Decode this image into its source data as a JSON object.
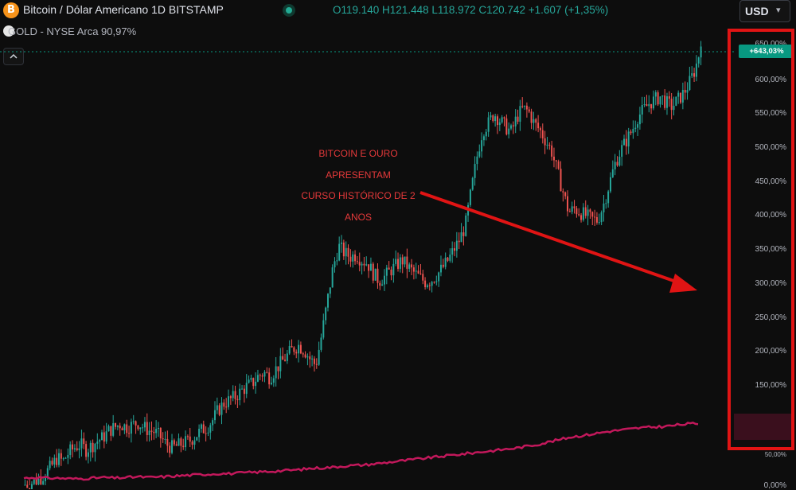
{
  "header": {
    "symbol_icon": "B",
    "symbol_title": "Bitcoin / Dólar Americano 1D BITSTAMP",
    "ohlc": "O119.140 H121.448 L118.972 C120.742 +1.607 (+1,35%)",
    "currency": "USD",
    "compare_label": "GOLD - NYSE Arca 90,97%"
  },
  "icons": {
    "symbol": "bitcoin-icon",
    "live": "live-status-icon",
    "currency_caret": "chevron-down-icon",
    "collapse": "chevron-up-icon",
    "compare": "gold-icon"
  },
  "annotation": {
    "lines": [
      "BITCOIN E OURO",
      "APRESENTAM",
      "CURSO HISTÓRICO DE 2",
      "ANOS"
    ]
  },
  "price_scale": {
    "last_value_label": "+643,03%",
    "ticks": [
      "650,00%",
      "600,00%",
      "550,00%",
      "500,00%",
      "450,00%",
      "400,00%",
      "350,00%",
      "300,00%",
      "250,00%",
      "200,00%",
      "150,00%",
      "50,00%",
      "0,00%"
    ]
  },
  "colors": {
    "up": "#26a69a",
    "down": "#ef5350",
    "gold_line": "#c2185b",
    "annotation": "#e5393a",
    "highlight": "#e01414"
  },
  "chart_data": {
    "type": "line",
    "y_unit": "%",
    "ylim": [
      0,
      650
    ],
    "series": [
      {
        "name": "Bitcoin / Dólar Americano",
        "values": [
          0,
          2,
          5,
          10,
          18,
          28,
          40,
          35,
          48,
          55,
          60,
          52,
          58,
          65,
          70,
          80,
          85,
          90,
          85,
          88,
          92,
          85,
          80,
          78,
          70,
          60,
          55,
          58,
          62,
          65,
          72,
          80,
          85,
          95,
          110,
          120,
          125,
          130,
          138,
          145,
          150,
          160,
          165,
          158,
          170,
          180,
          190,
          200,
          205,
          198,
          185,
          176,
          220,
          270,
          320,
          350,
          340,
          335,
          338,
          330,
          325,
          310,
          300,
          306,
          315,
          322,
          330,
          320,
          312,
          305,
          298,
          300,
          308,
          318,
          330,
          345,
          360,
          380,
          430,
          480,
          520,
          530,
          545,
          535,
          525,
          518,
          540,
          552,
          548,
          530,
          520,
          505,
          490,
          460,
          430,
          400,
          405,
          400,
          395,
          390,
          388,
          410,
          440,
          470,
          490,
          505,
          520,
          540,
          550,
          560,
          565,
          570,
          560,
          555,
          565,
          575,
          590,
          610,
          643
        ],
        "last_value": 643.03
      },
      {
        "name": "GOLD - NYSE Arca",
        "values": [
          5,
          6,
          5,
          5,
          4,
          4,
          5,
          6,
          5,
          6,
          7,
          6,
          7,
          8,
          9,
          10,
          11,
          12,
          12,
          13,
          14,
          15,
          16,
          17,
          18,
          20,
          21,
          22,
          24,
          25,
          26,
          28,
          30,
          32,
          34,
          36,
          38,
          40,
          42,
          44,
          46,
          48,
          50,
          52,
          55,
          58,
          62,
          66,
          70,
          72,
          75,
          78,
          80,
          82,
          84,
          85,
          86,
          88,
          90,
          91
        ],
        "last_value": 90.97
      }
    ]
  }
}
